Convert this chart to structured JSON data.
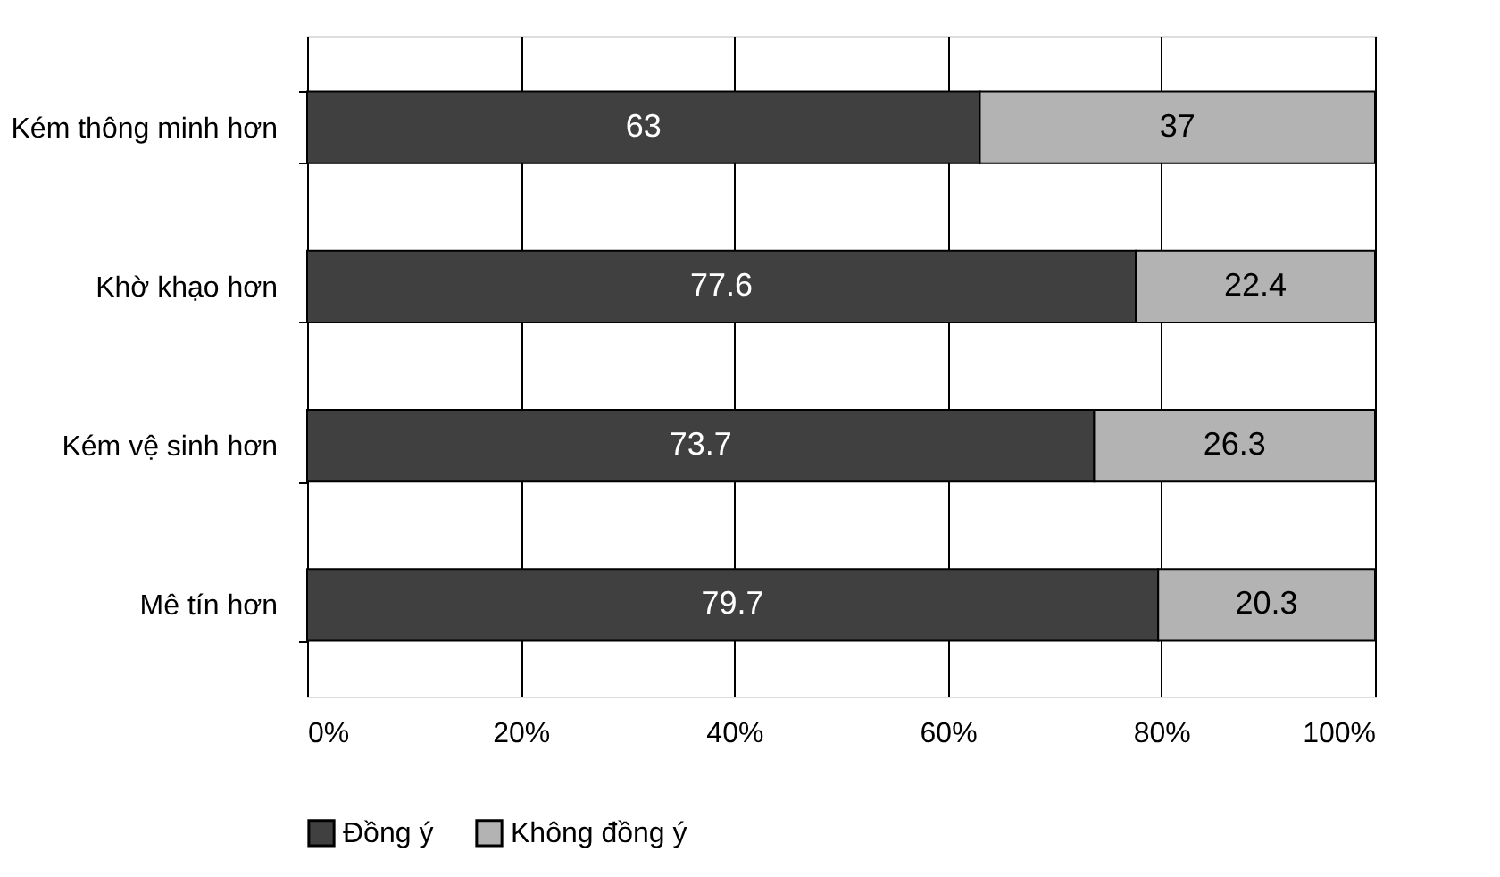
{
  "chart_data": {
    "type": "bar",
    "orientation": "horizontal",
    "stacked": true,
    "data_labels": true,
    "legend": "bottom",
    "grid": "x",
    "categories": [
      "Kém thông minh hơn",
      "Khờ khạo hơn",
      "Kém vệ sinh hơn",
      "Mê tín hơn"
    ],
    "series": [
      {
        "name": "Đồng ý",
        "color": "#404040",
        "values": [
          63,
          77.6,
          73.7,
          79.7
        ]
      },
      {
        "name": "Không đồng ý",
        "color": "#b3b3b3",
        "values": [
          37,
          22.4,
          26.3,
          20.3
        ]
      }
    ],
    "xlim": [
      0,
      100
    ],
    "xticks": [
      {
        "value": 0,
        "label": "0%"
      },
      {
        "value": 20,
        "label": "20%"
      },
      {
        "value": 40,
        "label": "40%"
      },
      {
        "value": 60,
        "label": "60%"
      },
      {
        "value": 80,
        "label": "80%"
      },
      {
        "value": 100,
        "label": "100%"
      }
    ]
  }
}
